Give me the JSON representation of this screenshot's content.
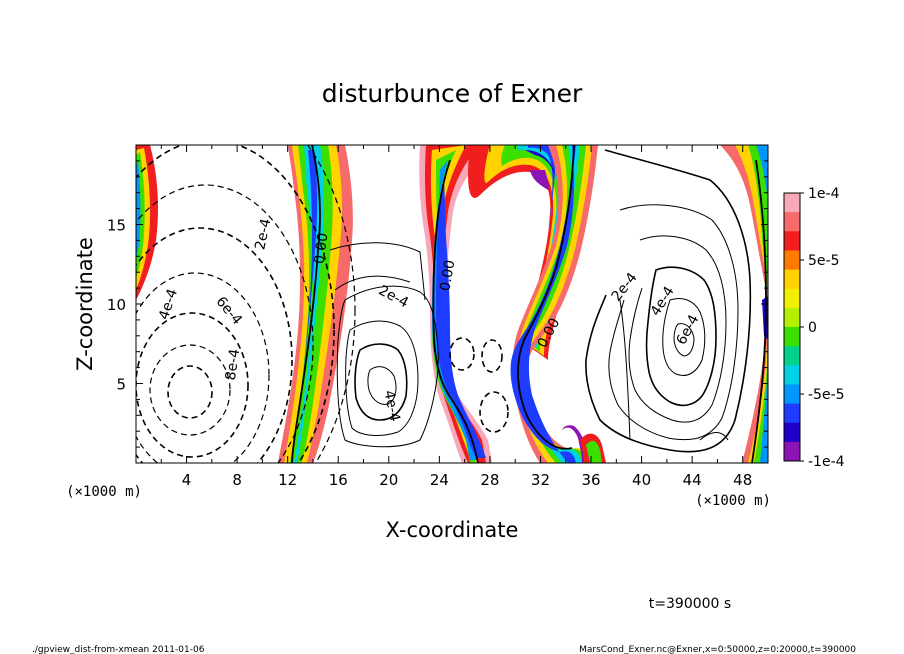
{
  "chart_data": {
    "type": "heatmap",
    "title": "disturbunce of Exner",
    "xlabel": "X-coordinate",
    "ylabel": "Z-coordinate",
    "x_unit": "(×1000 m)",
    "y_unit": "(×1000 m)",
    "xlim": [
      0,
      50
    ],
    "ylim": [
      0,
      20
    ],
    "x_ticks": [
      4,
      8,
      12,
      16,
      20,
      24,
      28,
      32,
      36,
      40,
      44,
      48
    ],
    "y_ticks": [
      5,
      10,
      15
    ],
    "colorbar": {
      "min": -0.0001,
      "max": 0.0001,
      "tick_labels": [
        "1e-4",
        "5e-5",
        "0",
        "-5e-5",
        "-1e-4"
      ],
      "tick_values": [
        0.0001,
        5e-05,
        0,
        -5e-05,
        -0.0001
      ],
      "colors": [
        "#f8a8b8",
        "#f66a6a",
        "#f01e1e",
        "#ff7a00",
        "#ffd200",
        "#f0f000",
        "#b4f000",
        "#3ce000",
        "#00d28c",
        "#00d2e6",
        "#0096ff",
        "#1e3cff",
        "#1e00c8",
        "#8c14b4"
      ]
    },
    "contour_labels": [
      {
        "text": "2e-4",
        "x": 10.0,
        "z": 14.4,
        "angle": -78
      },
      {
        "text": "4e-4",
        "x": 2.5,
        "z": 10.0,
        "angle": -72
      },
      {
        "text": "6e-4",
        "x": 7.4,
        "z": 9.6,
        "angle": 50
      },
      {
        "text": "8e-4",
        "x": 7.6,
        "z": 6.2,
        "angle": -82
      },
      {
        "text": "0.00",
        "x": 14.6,
        "z": 13.5,
        "angle": -82
      },
      {
        "text": "2e-4",
        "x": 20.4,
        "z": 10.5,
        "angle": 28
      },
      {
        "text": "4e-4",
        "x": 20.3,
        "z": 3.6,
        "angle": 78
      },
      {
        "text": "0.00",
        "x": 24.6,
        "z": 11.8,
        "angle": -80
      },
      {
        "text": "0.00",
        "x": 32.6,
        "z": 8.2,
        "angle": -62
      },
      {
        "text": "2e-4",
        "x": 38.6,
        "z": 11.1,
        "angle": -52
      },
      {
        "text": "4e-4",
        "x": 41.6,
        "z": 10.2,
        "angle": -58
      },
      {
        "text": "6e-4",
        "x": 43.6,
        "z": 8.4,
        "angle": -62
      }
    ],
    "time_label": "t=390000 s"
  },
  "footer": {
    "left": "./gpview_dist-from-xmean  2011-01-06",
    "right": "MarsCond_Exner.nc@Exner,x=0:50000,z=0:20000,t=390000"
  }
}
